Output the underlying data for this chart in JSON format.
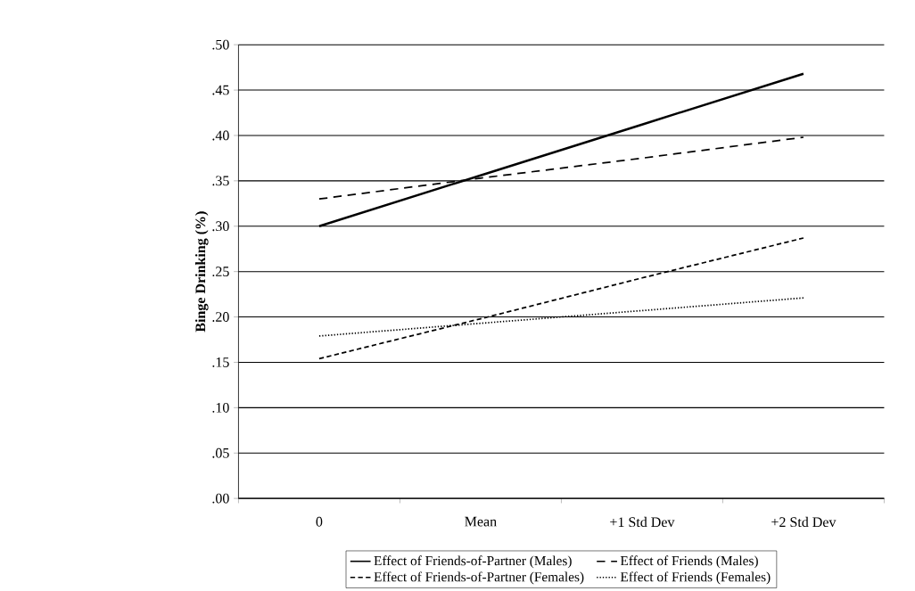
{
  "chart_data": {
    "type": "line",
    "ylabel": "Binge Drinking (%)",
    "categories": [
      "0",
      "Mean",
      "+1 Std Dev",
      "+2 Std Dev"
    ],
    "series": [
      {
        "name": "Effect of Friends-of-Partner (Males)",
        "color": "#000000",
        "line_style": "solid",
        "values": [
          0.3,
          0.356,
          0.412,
          0.468
        ]
      },
      {
        "name": "Effect of Friends (Males)",
        "color": "#000000",
        "line_style": "dashed",
        "values": [
          0.33,
          0.353,
          0.375,
          0.398
        ]
      },
      {
        "name": "Effect of Friends-of-Partner (Females)",
        "color": "#000000",
        "line_style": "densely dashed",
        "values": [
          0.154,
          0.198,
          0.243,
          0.287
        ]
      },
      {
        "name": "Effect of Friends (Females)",
        "color": "#000000",
        "line_style": "dotted",
        "values": [
          0.179,
          0.193,
          0.207,
          0.221
        ]
      }
    ],
    "ylim": [
      0,
      0.5
    ],
    "yticks": [
      {
        "value": 0,
        "label": ".00"
      },
      {
        "value": 0.05,
        "label": ".05"
      },
      {
        "value": 0.1,
        "label": ".10"
      },
      {
        "value": 0.15,
        "label": ".15"
      },
      {
        "value": 0.2,
        "label": ".20"
      },
      {
        "value": 0.25,
        "label": ".25"
      },
      {
        "value": 0.3,
        "label": ".30"
      },
      {
        "value": 0.35,
        "label": ".35"
      },
      {
        "value": 0.4,
        "label": ".40"
      },
      {
        "value": 0.45,
        "label": ".45"
      },
      {
        "value": 0.5,
        "label": ".50"
      }
    ],
    "grid": "y",
    "legend": "bottom",
    "marker": "none"
  }
}
